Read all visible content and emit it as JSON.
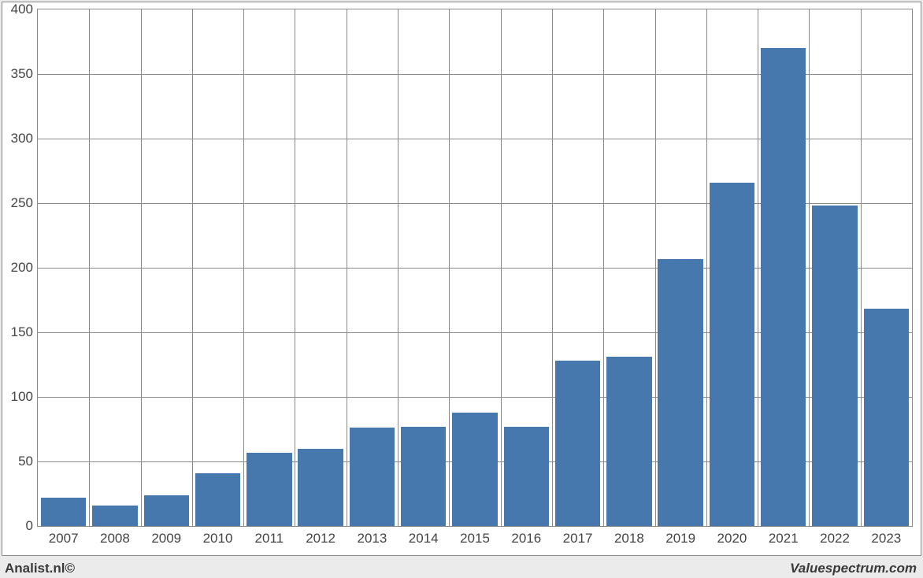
{
  "chart": {
    "type": "bar",
    "background_color": "#ebebeb",
    "plot_background_color": "#ffffff",
    "border_color": "#8a8a8a",
    "grid_color": "#8a8a8a",
    "bar_color": "#4678ad",
    "label_color": "#444444",
    "label_fontsize": 17,
    "ylim": [
      0,
      400
    ],
    "ytick_step": 50,
    "yticks": [
      0,
      50,
      100,
      150,
      200,
      250,
      300,
      350,
      400
    ],
    "categories": [
      "2007",
      "2008",
      "2009",
      "2010",
      "2011",
      "2012",
      "2013",
      "2014",
      "2015",
      "2016",
      "2017",
      "2018",
      "2019",
      "2020",
      "2021",
      "2022",
      "2023"
    ],
    "values": [
      22,
      16,
      24,
      41,
      57,
      60,
      76,
      77,
      88,
      77,
      128,
      131,
      207,
      266,
      370,
      248,
      168
    ],
    "bar_width_ratio": 0.88
  },
  "footer": {
    "left": "Analist.nl©",
    "right": "Valuespectrum.com"
  }
}
